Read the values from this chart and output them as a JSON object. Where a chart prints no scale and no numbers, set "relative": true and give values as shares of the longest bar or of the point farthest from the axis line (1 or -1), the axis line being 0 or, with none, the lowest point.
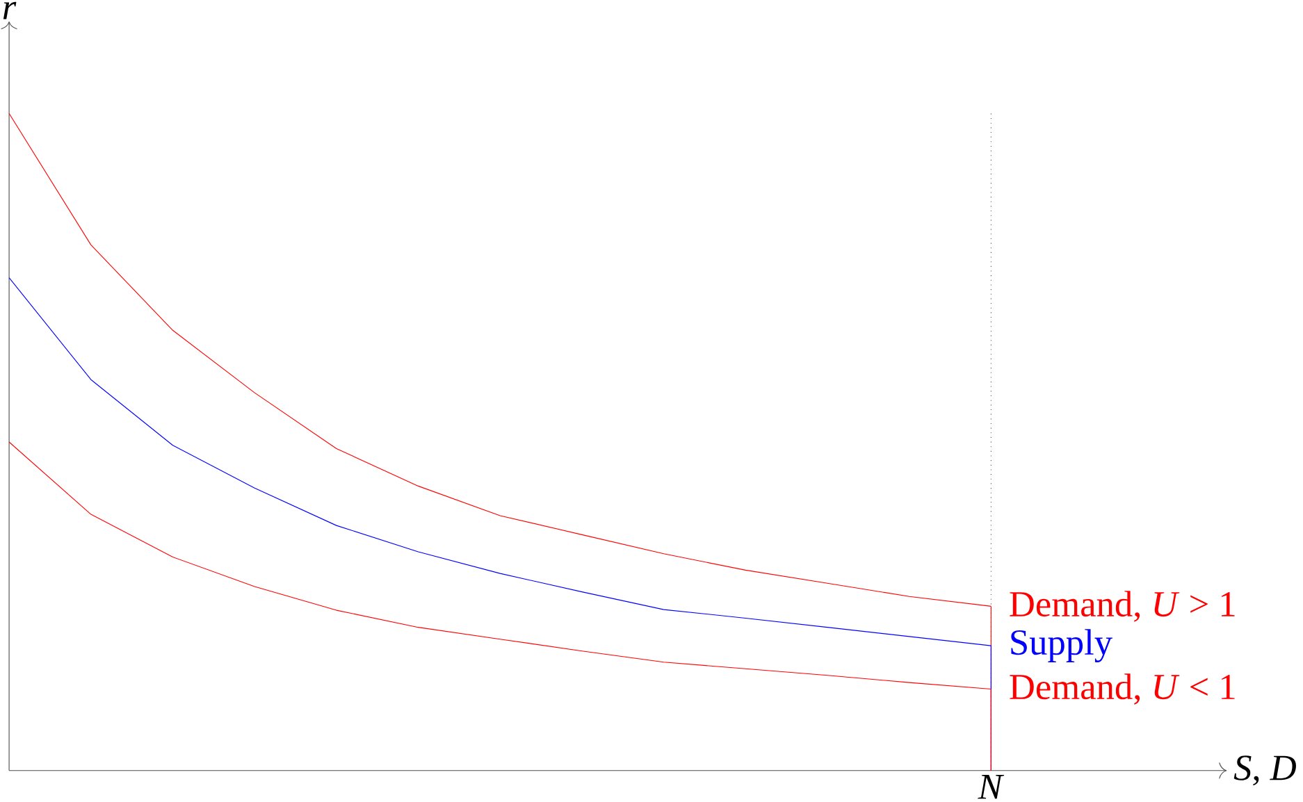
{
  "chart_data": {
    "type": "line",
    "relative": true,
    "annotations": [
      "*S*, *D*"
    ],
    "ylabel": "*r*",
    "marker": "none",
    "line_style": "solid",
    "categories": [
      null,
      null,
      null,
      null,
      null,
      null,
      null,
      null,
      null,
      null,
      null,
      null,
      null
    ],
    "ref_lines": [
      {
        "axis": "x",
        "label": "*N*",
        "line_style": "dotted",
        "color": "#555555"
      }
    ],
    "series": [
      {
        "name": "Demand, *U* > 1",
        "color": "#ff0000",
        "values": [
          1.0,
          0.8,
          0.67,
          0.575,
          0.49,
          0.433,
          0.388,
          0.359,
          0.33,
          0.305,
          0.285,
          0.265,
          0.25
        ]
      },
      {
        "name": "Supply",
        "color": "#0000ff",
        "values": [
          0.75,
          0.595,
          0.495,
          0.43,
          0.373,
          0.333,
          0.3,
          0.272,
          0.245,
          0.232,
          0.218,
          0.204,
          0.19
        ]
      },
      {
        "name": "Demand, *U* < 1",
        "color": "#ff0000",
        "values": [
          0.5,
          0.39,
          0.325,
          0.28,
          0.244,
          0.218,
          0.2,
          0.182,
          0.165,
          0.155,
          0.145,
          0.134,
          0.124
        ]
      }
    ]
  }
}
